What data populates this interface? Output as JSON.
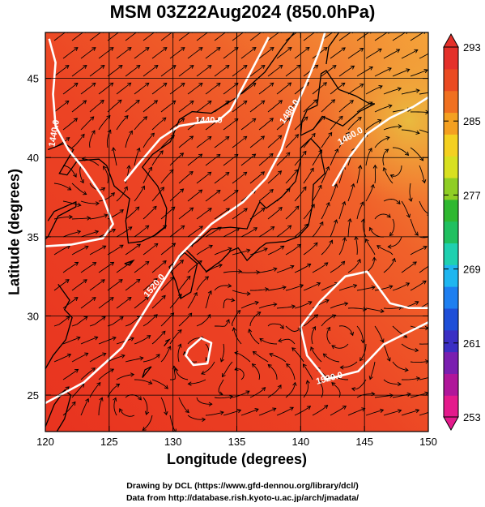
{
  "title": "MSM 03Z22Aug2024 (850.0hPa)",
  "xlabel": "Longitude (degrees)",
  "ylabel": "Latitude  (degrees)",
  "credit_line1": "Drawing by DCL (https://www.gfd-dennou.org/library/dcl/)",
  "credit_line2": "Data from http://database.rish.kyoto-u.ac.jp/arch/jmadata/",
  "colors": {
    "field_low": "#e8331f",
    "field_mid": "#f0612a",
    "field_high": "#f4a43a",
    "contour": "#ffffff",
    "streamline": "#000000",
    "coast": "#000000"
  },
  "map": {
    "lon_range": [
      120,
      150
    ],
    "lat_range": [
      22.7,
      47.9
    ],
    "lon_ticks": [
      "120",
      "125",
      "130",
      "135",
      "140",
      "145",
      "150"
    ],
    "lat_ticks": [
      "25",
      "30",
      "35",
      "40",
      "45"
    ],
    "grid": true,
    "contour_labels": [
      {
        "text": "1440.0",
        "lon": 120.9,
        "lat": 41.5,
        "rot": -80
      },
      {
        "text": "1440.0",
        "lon": 132.8,
        "lat": 42.2,
        "rot": 0
      },
      {
        "text": "1480.0",
        "lon": 139.3,
        "lat": 42.8,
        "rot": -55
      },
      {
        "text": "1460.0",
        "lon": 144.0,
        "lat": 41.2,
        "rot": -30
      },
      {
        "text": "1520.0",
        "lon": 142.3,
        "lat": 25.9,
        "rot": -15
      },
      {
        "text": "1520.0",
        "lon": 128.7,
        "lat": 31.8,
        "rot": -50
      }
    ]
  },
  "colorbar": {
    "min": 253,
    "max": 293,
    "tick_labels": [
      "293",
      "285",
      "277",
      "269",
      "261",
      "253"
    ],
    "stops": [
      "#e41a8c",
      "#b0169a",
      "#7a1fb0",
      "#3b2fc4",
      "#1f4fd8",
      "#1e7ff0",
      "#1fb6f0",
      "#1fd0b0",
      "#20c060",
      "#2fb830",
      "#8fce24",
      "#d8e020",
      "#f4d020",
      "#f4a020",
      "#f07020",
      "#ea4a22",
      "#e4302a"
    ]
  }
}
